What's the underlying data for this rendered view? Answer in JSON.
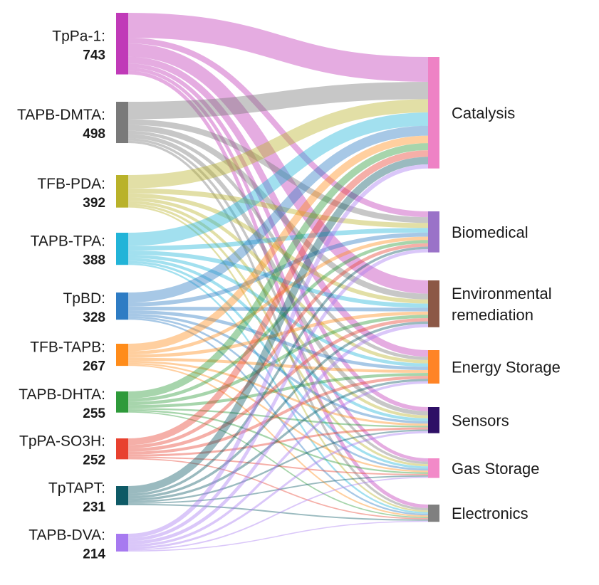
{
  "chart_data": {
    "type": "sankey",
    "sources": [
      {
        "name": "TpPa-1:",
        "value": "743",
        "color": "#c03ab8"
      },
      {
        "name": "TAPB-DMTA:",
        "value": "498",
        "color": "#7a7a7a"
      },
      {
        "name": "TFB-PDA:",
        "value": "392",
        "color": "#b9b22a"
      },
      {
        "name": "TAPB-TPA:",
        "value": "388",
        "color": "#22b4d8"
      },
      {
        "name": "TpBD:",
        "value": "328",
        "color": "#2e7cc4"
      },
      {
        "name": "TFB-TAPB:",
        "value": "267",
        "color": "#ff8c1a"
      },
      {
        "name": "TAPB-DHTA:",
        "value": "255",
        "color": "#2e9a3a"
      },
      {
        "name": "TpPA-SO3H:",
        "value": "252",
        "color": "#e8412f"
      },
      {
        "name": "TpTAPT:",
        "value": "231",
        "color": "#0e5a66"
      },
      {
        "name": "TAPB-DVA:",
        "value": "214",
        "color": "#a77af0"
      }
    ],
    "targets": [
      {
        "lines": [
          "Catalysis"
        ],
        "color": "#ee82c5"
      },
      {
        "lines": [
          "Biomedical"
        ],
        "color": "#9a72c8"
      },
      {
        "lines": [
          "Environmental",
          "remediation"
        ],
        "color": "#8c5846"
      },
      {
        "lines": [
          "Energy Storage"
        ],
        "color": "#ff8426"
      },
      {
        "lines": [
          "Sensors"
        ],
        "color": "#2e0f66"
      },
      {
        "lines": [
          "Gas Storage"
        ],
        "color": "#f28ac8"
      },
      {
        "lines": [
          "Electronics"
        ],
        "color": "#808080"
      }
    ],
    "flows": [
      [
        300,
        70,
        160,
        80,
        50,
        40,
        43
      ],
      [
        210,
        70,
        70,
        40,
        50,
        30,
        28
      ],
      [
        160,
        60,
        50,
        40,
        35,
        27,
        20
      ],
      [
        160,
        55,
        50,
        40,
        35,
        28,
        20
      ],
      [
        120,
        50,
        45,
        40,
        30,
        23,
        20
      ],
      [
        90,
        40,
        40,
        35,
        25,
        20,
        17
      ],
      [
        85,
        40,
        40,
        35,
        20,
        20,
        15
      ],
      [
        80,
        40,
        40,
        35,
        25,
        17,
        15
      ],
      [
        90,
        30,
        30,
        28,
        20,
        16,
        17
      ],
      [
        50,
        40,
        40,
        30,
        25,
        16,
        13
      ]
    ]
  }
}
